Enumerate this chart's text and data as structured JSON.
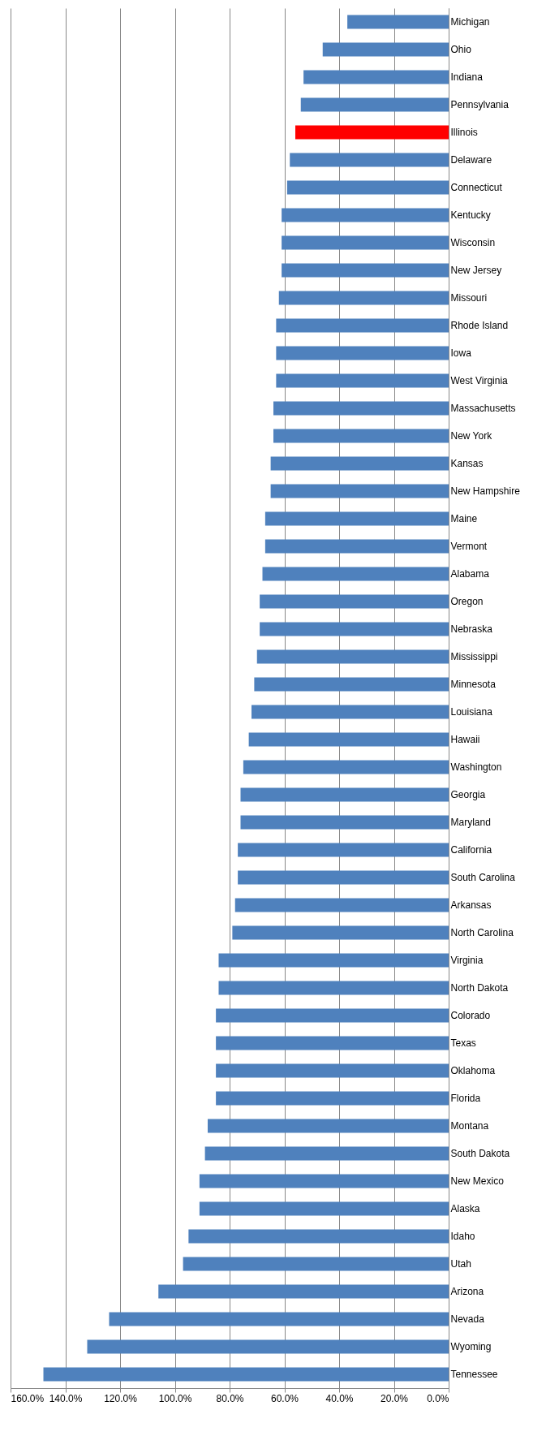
{
  "chart_data": {
    "type": "bar",
    "orientation": "horizontal",
    "categories": [
      "Michigan",
      "Ohio",
      "Indiana",
      "Pennsylvania",
      "Illinois",
      "Delaware",
      "Connecticut",
      "Kentucky",
      "Wisconsin",
      "New Jersey",
      "Missouri",
      "Rhode Island",
      "Iowa",
      "West Virginia",
      "Massachusetts",
      "New York",
      "Kansas",
      "New Hampshire",
      "Maine",
      "Vermont",
      "Alabama",
      "Oregon",
      "Nebraska",
      "Mississippi",
      "Minnesota",
      "Louisiana",
      "Hawaii",
      "Washington",
      "Georgia",
      "Maryland",
      "California",
      "South Carolina",
      "Arkansas",
      "North Carolina",
      "Virginia",
      "North Dakota",
      "Colorado",
      "Texas",
      "Oklahoma",
      "Florida",
      "Montana",
      "South Dakota",
      "New Mexico",
      "Alaska",
      "Idaho",
      "Utah",
      "Arizona",
      "Nevada",
      "Wyoming",
      "Tennessee"
    ],
    "values": [
      37,
      46,
      53,
      54,
      56,
      58,
      59,
      61,
      61,
      61,
      62,
      63,
      63,
      63,
      64,
      64,
      65,
      65,
      67,
      67,
      68,
      69,
      69,
      70,
      71,
      72,
      73,
      75,
      76,
      76,
      77,
      77,
      78,
      79,
      84,
      84,
      85,
      85,
      85,
      85,
      88,
      89,
      91,
      91,
      95,
      97,
      106,
      124,
      132,
      148
    ],
    "colors": [
      "#4f81bd",
      "#4f81bd",
      "#4f81bd",
      "#4f81bd",
      "#ff0000",
      "#4f81bd",
      "#4f81bd",
      "#4f81bd",
      "#4f81bd",
      "#4f81bd",
      "#4f81bd",
      "#4f81bd",
      "#4f81bd",
      "#4f81bd",
      "#4f81bd",
      "#4f81bd",
      "#4f81bd",
      "#4f81bd",
      "#4f81bd",
      "#4f81bd",
      "#4f81bd",
      "#4f81bd",
      "#4f81bd",
      "#4f81bd",
      "#4f81bd",
      "#4f81bd",
      "#4f81bd",
      "#4f81bd",
      "#4f81bd",
      "#4f81bd",
      "#4f81bd",
      "#4f81bd",
      "#4f81bd",
      "#4f81bd",
      "#4f81bd",
      "#4f81bd",
      "#4f81bd",
      "#4f81bd",
      "#4f81bd",
      "#4f81bd",
      "#4f81bd",
      "#4f81bd",
      "#4f81bd",
      "#4f81bd",
      "#4f81bd",
      "#4f81bd",
      "#4f81bd",
      "#4f81bd",
      "#4f81bd",
      "#4f81bd"
    ],
    "xlim": [
      160,
      0
    ],
    "xticks": [
      {
        "value": 160,
        "label": "160.0%"
      },
      {
        "value": 140,
        "label": "140.0%"
      },
      {
        "value": 120,
        "label": "120.0%"
      },
      {
        "value": 100,
        "label": "100.0%"
      },
      {
        "value": 80,
        "label": "80.0%"
      },
      {
        "value": 60,
        "label": "60.0%"
      },
      {
        "value": 40,
        "label": "40.0%"
      },
      {
        "value": 20,
        "label": "20.0%"
      },
      {
        "value": 0,
        "label": "0.0%"
      }
    ],
    "grid": "x"
  }
}
